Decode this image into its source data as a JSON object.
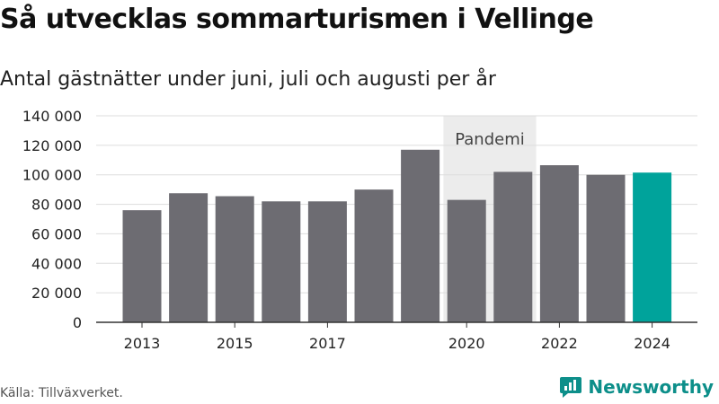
{
  "title": "Så utvecklas sommarturismen i Vellinge",
  "subtitle": "Antal gästnätter under juni, juli och augusti per år",
  "source": "Källa: Tillväxverket.",
  "brand": {
    "name": "Newsworthy",
    "color": "#0d8f8a",
    "icon": "newsworthy-logo-icon"
  },
  "colors": {
    "bar": "#6d6c72",
    "highlight": "#00a39b",
    "shade": "#ececec",
    "axis": "#333333",
    "grid": "#dddddd"
  },
  "chart_data": {
    "type": "bar",
    "title": "Så utvecklas sommarturismen i Vellinge",
    "subtitle": "Antal gästnätter under juni, juli och augusti per år",
    "categories": [
      "2013",
      "2014",
      "2015",
      "2016",
      "2017",
      "2018",
      "2019",
      "2020",
      "2021",
      "2022",
      "2023",
      "2024"
    ],
    "values": [
      76000,
      87500,
      85500,
      82000,
      82000,
      90000,
      117000,
      83000,
      102000,
      106500,
      100000,
      101500
    ],
    "highlight_category": "2024",
    "ylim": [
      0,
      140000
    ],
    "yticks": [
      0,
      20000,
      40000,
      60000,
      80000,
      100000,
      120000,
      140000
    ],
    "ytick_labels": [
      "0",
      "20 000",
      "40 000",
      "60 000",
      "80 000",
      "100 000",
      "120 000",
      "140 000"
    ],
    "xtick_labels": [
      "2013",
      "2015",
      "2017",
      "2020",
      "2022",
      "2024"
    ],
    "grid": true,
    "annotations": [
      {
        "type": "shaded-region",
        "label": "Pandemi",
        "from": "2020",
        "to": "2021"
      }
    ]
  }
}
